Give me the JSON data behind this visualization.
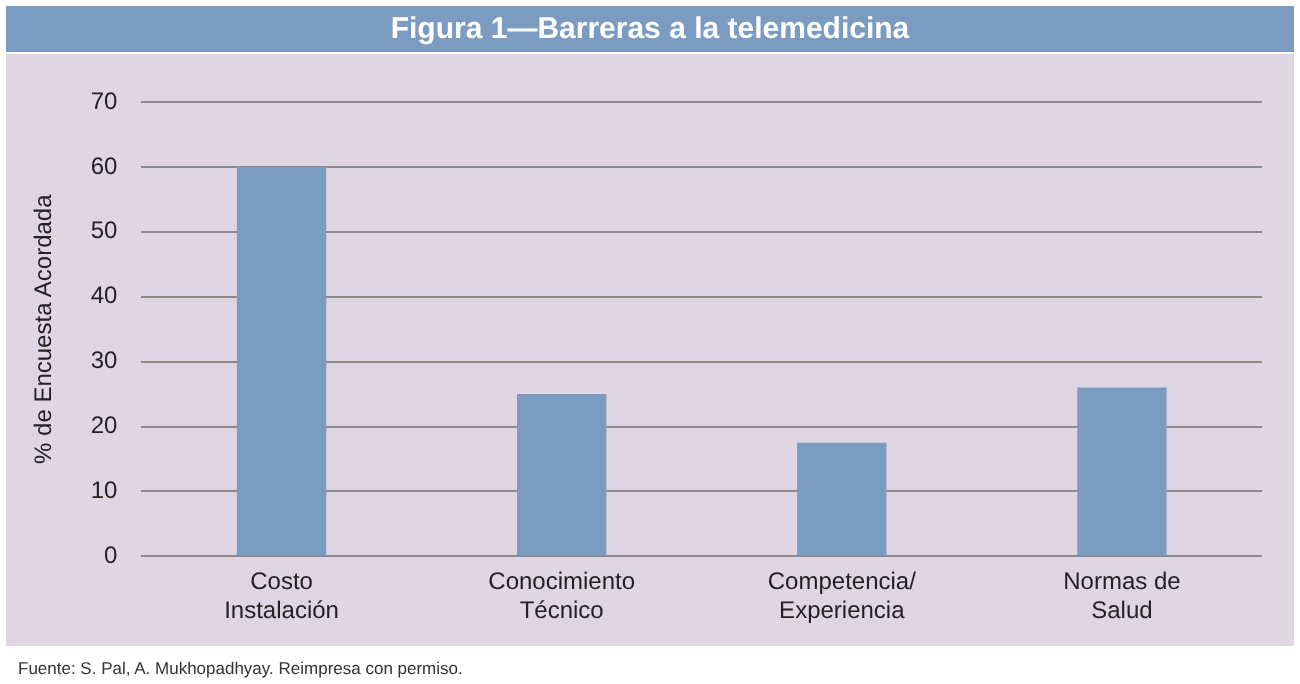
{
  "chart_data": {
    "type": "bar",
    "title": "Figura 1—Barreras a la telemedicina",
    "ylabel": "% de Encuesta Acordada",
    "categories": [
      "Costo\nInstalación",
      "Conocimiento\nTécnico",
      "Competencia/\nExperiencia",
      "Normas de\nSalud"
    ],
    "values": [
      60,
      25,
      17.5,
      26
    ],
    "color": "#7b9bc1",
    "ylim": [
      0,
      70
    ],
    "yticks": [
      0,
      10,
      20,
      30,
      40,
      50,
      60,
      70
    ],
    "grid": "y",
    "legend": false,
    "annotations": [
      "Fuente:  S. Pal, A. Mukhopadhyay. Reimpresa con permiso."
    ]
  }
}
